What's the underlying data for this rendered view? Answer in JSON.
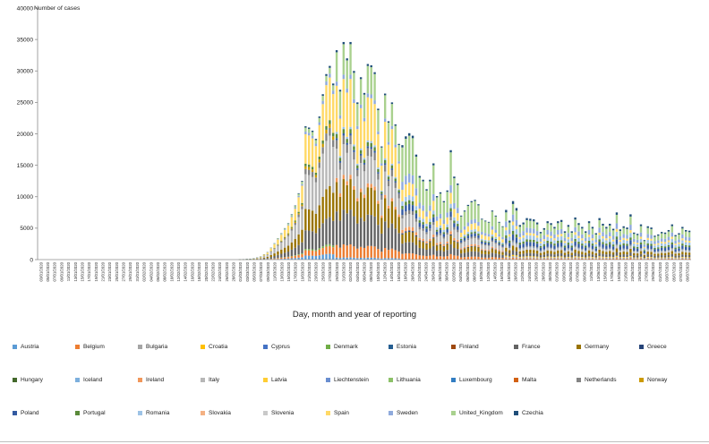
{
  "chart_data": {
    "type": "bar",
    "stacked": true,
    "ylabel": "Number of cases",
    "xlabel": "Day, month and year of reporting",
    "ylim": [
      0,
      40000
    ],
    "yticks": [
      0,
      5000,
      10000,
      15000,
      20000,
      25000,
      30000,
      35000,
      40000
    ],
    "date_labels": [
      "03/01/2020",
      "05/01/2020",
      "07/01/2020",
      "09/01/2020",
      "11/01/2020",
      "13/01/2020",
      "15/01/2020",
      "17/01/2020",
      "19/01/2020",
      "21/01/2020",
      "23/01/2020",
      "25/01/2020",
      "27/01/2020",
      "29/01/2020",
      "31/01/2020",
      "02/02/2020",
      "04/02/2020",
      "06/02/2020",
      "08/02/2020",
      "10/02/2020",
      "12/02/2020",
      "14/02/2020",
      "16/02/2020",
      "18/02/2020",
      "20/02/2020",
      "22/02/2020",
      "24/02/2020",
      "26/02/2020",
      "28/02/2020",
      "01/03/2020",
      "03/03/2020",
      "05/03/2020",
      "07/03/2020",
      "09/03/2020",
      "11/03/2020",
      "13/03/2020",
      "15/03/2020",
      "17/03/2020",
      "19/03/2020",
      "21/03/2020",
      "23/03/2020",
      "25/03/2020",
      "27/03/2020",
      "29/03/2020",
      "31/03/2020",
      "02/04/2020",
      "04/04/2020",
      "06/04/2020",
      "08/04/2020",
      "10/04/2020",
      "12/04/2020",
      "14/04/2020",
      "16/04/2020",
      "18/04/2020",
      "20/04/2020",
      "22/04/2020",
      "24/04/2020",
      "26/04/2020",
      "28/04/2020",
      "30/04/2020",
      "02/05/2020",
      "04/05/2020",
      "06/05/2020",
      "08/05/2020",
      "10/05/2020",
      "12/05/2020",
      "14/05/2020",
      "16/05/2020",
      "18/05/2020",
      "20/05/2020",
      "22/05/2020",
      "24/05/2020",
      "26/05/2020",
      "28/05/2020",
      "30/05/2020",
      "01/06/2020",
      "03/06/2020",
      "05/06/2020",
      "07/06/2020",
      "09/06/2020",
      "11/06/2020",
      "13/06/2020",
      "15/06/2020",
      "17/06/2020",
      "19/06/2020",
      "21/06/2020",
      "23/06/2020",
      "25/06/2020",
      "27/06/2020",
      "29/06/2020",
      "01/07/2020",
      "03/07/2020",
      "05/07/2020",
      "07/07/2020",
      "09/07/2020"
    ],
    "series": [
      {
        "name": "Austria",
        "color": "#5b9bd5"
      },
      {
        "name": "Belgium",
        "color": "#ed7d31"
      },
      {
        "name": "Bulgaria",
        "color": "#a5a5a5"
      },
      {
        "name": "Croatia",
        "color": "#ffc000"
      },
      {
        "name": "Cyprus",
        "color": "#4472c4"
      },
      {
        "name": "Denmark",
        "color": "#70ad47"
      },
      {
        "name": "Estonia",
        "color": "#255e91"
      },
      {
        "name": "Finland",
        "color": "#9e480e"
      },
      {
        "name": "France",
        "color": "#636363"
      },
      {
        "name": "Germany",
        "color": "#997300"
      },
      {
        "name": "Greece",
        "color": "#264478"
      },
      {
        "name": "Hungary",
        "color": "#43682b"
      },
      {
        "name": "Iceland",
        "color": "#7cafdd"
      },
      {
        "name": "Ireland",
        "color": "#f1975a"
      },
      {
        "name": "Italy",
        "color": "#b7b7b7"
      },
      {
        "name": "Latvia",
        "color": "#ffcd33"
      },
      {
        "name": "Liechtenstein",
        "color": "#698ed0"
      },
      {
        "name": "Lithuania",
        "color": "#8cc168"
      },
      {
        "name": "Luxembourg",
        "color": "#327dc2"
      },
      {
        "name": "Malta",
        "color": "#d26012"
      },
      {
        "name": "Netherlands",
        "color": "#848484"
      },
      {
        "name": "Norway",
        "color": "#cc9a00"
      },
      {
        "name": "Poland",
        "color": "#335aa1"
      },
      {
        "name": "Portugal",
        "color": "#5a8a39"
      },
      {
        "name": "Romania",
        "color": "#9dc3e6"
      },
      {
        "name": "Slovakia",
        "color": "#f4b183"
      },
      {
        "name": "Slovenia",
        "color": "#c9c9c9"
      },
      {
        "name": "Spain",
        "color": "#ffd966"
      },
      {
        "name": "Sweden",
        "color": "#8faadc"
      },
      {
        "name": "United_Kingdom",
        "color": "#a9d18e"
      },
      {
        "name": "Czechia",
        "color": "#1f4e79"
      }
    ],
    "peak_total": 34600
  }
}
